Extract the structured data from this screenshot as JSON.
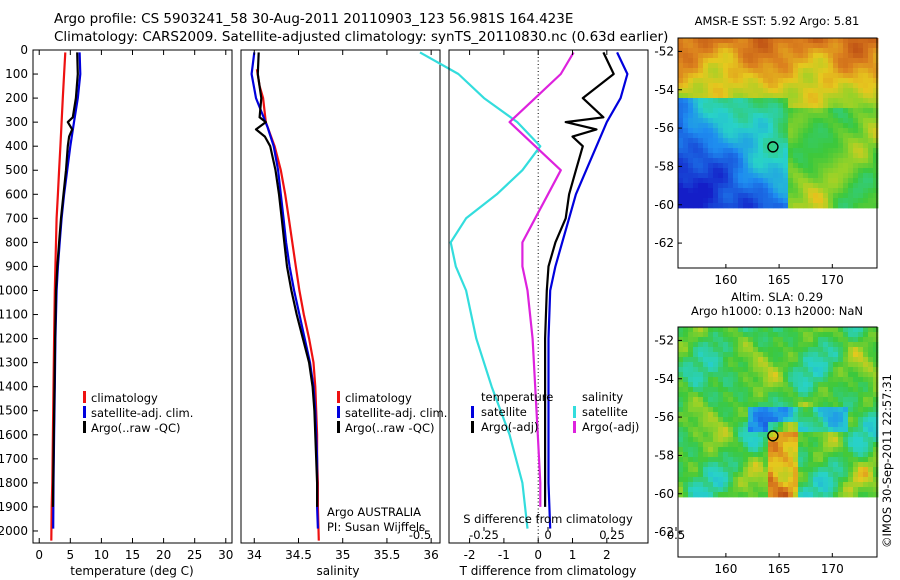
{
  "header": {
    "line1": "Argo profile: CS 5903241_58 30-Aug-2011 20110903_123 56.981S 164.423E",
    "line2": "Climatology: CARS2009. Satellite-adjusted climatology: synTS_20110830.nc (0.63d earlier)"
  },
  "colors": {
    "climatology": "#ee1111",
    "satellite": "#0000dd",
    "argo": "#000000",
    "s_satellite": "#33dddd",
    "s_argo": "#dd22dd"
  },
  "chart_data": [
    {
      "type": "line",
      "panel": "temperature",
      "xlabel": "temperature (deg C)",
      "ylim": [
        2050,
        0
      ],
      "xlim": [
        -1,
        31
      ],
      "xticks": [
        "0",
        "5",
        "10",
        "15",
        "20",
        "25",
        "30"
      ],
      "yticks": [
        "0",
        "100",
        "200",
        "300",
        "400",
        "500",
        "600",
        "700",
        "800",
        "900",
        "1000",
        "1100",
        "1200",
        "1300",
        "1400",
        "1500",
        "1600",
        "1700",
        "1800",
        "1900",
        "2000"
      ],
      "legend": [
        "climatology",
        "satellite-adj. clim.",
        "Argo(..raw -QC)"
      ],
      "series": [
        {
          "name": "climatology",
          "color": "climatology",
          "points": [
            [
              4.2,
              10
            ],
            [
              4.0,
              100
            ],
            [
              3.8,
              200
            ],
            [
              3.6,
              300
            ],
            [
              3.4,
              400
            ],
            [
              3.2,
              500
            ],
            [
              3.0,
              600
            ],
            [
              2.8,
              700
            ],
            [
              2.7,
              800
            ],
            [
              2.6,
              900
            ],
            [
              2.5,
              1000
            ],
            [
              2.4,
              1200
            ],
            [
              2.3,
              1400
            ],
            [
              2.2,
              1600
            ],
            [
              2.1,
              1800
            ],
            [
              2.0,
              1900
            ],
            [
              1.95,
              2040
            ]
          ]
        },
        {
          "name": "satellite-adj. clim.",
          "color": "satellite",
          "points": [
            [
              6.5,
              10
            ],
            [
              6.6,
              100
            ],
            [
              6.2,
              200
            ],
            [
              5.6,
              300
            ],
            [
              5.0,
              400
            ],
            [
              4.5,
              500
            ],
            [
              4.0,
              600
            ],
            [
              3.6,
              700
            ],
            [
              3.3,
              800
            ],
            [
              3.0,
              900
            ],
            [
              2.8,
              1000
            ],
            [
              2.6,
              1200
            ],
            [
              2.5,
              1400
            ],
            [
              2.4,
              1600
            ],
            [
              2.3,
              1800
            ],
            [
              2.25,
              1990
            ]
          ]
        },
        {
          "name": "Argo(..raw -QC)",
          "color": "argo",
          "points": [
            [
              6.1,
              10
            ],
            [
              6.2,
              100
            ],
            [
              5.9,
              200
            ],
            [
              5.4,
              280
            ],
            [
              4.6,
              300
            ],
            [
              5.3,
              330
            ],
            [
              4.8,
              360
            ],
            [
              4.6,
              400
            ],
            [
              4.3,
              500
            ],
            [
              3.9,
              600
            ],
            [
              3.5,
              700
            ],
            [
              3.2,
              800
            ],
            [
              2.9,
              900
            ],
            [
              2.7,
              1000
            ],
            [
              2.55,
              1200
            ],
            [
              2.45,
              1400
            ],
            [
              2.35,
              1600
            ],
            [
              2.25,
              1800
            ],
            [
              2.2,
              1900
            ]
          ]
        }
      ]
    },
    {
      "type": "line",
      "panel": "salinity",
      "xlabel": "salinity",
      "ylim": [
        2050,
        0
      ],
      "xlim": [
        33.85,
        36.1
      ],
      "xticks": [
        "34",
        "34.5",
        "35",
        "35.5",
        "36"
      ],
      "legend": [
        "climatology",
        "satellite-adj. clim.",
        "Argo(..raw -QC)"
      ],
      "series": [
        {
          "name": "climatology",
          "color": "climatology",
          "points": [
            [
              34.03,
              80
            ],
            [
              34.06,
              150
            ],
            [
              34.1,
              200
            ],
            [
              34.13,
              300
            ],
            [
              34.23,
              400
            ],
            [
              34.3,
              500
            ],
            [
              34.35,
              600
            ],
            [
              34.39,
              700
            ],
            [
              34.43,
              800
            ],
            [
              34.47,
              900
            ],
            [
              34.51,
              1000
            ],
            [
              34.56,
              1100
            ],
            [
              34.62,
              1200
            ],
            [
              34.67,
              1300
            ],
            [
              34.69,
              1400
            ],
            [
              34.7,
              1500
            ],
            [
              34.71,
              1600
            ],
            [
              34.71,
              1700
            ],
            [
              34.72,
              1800
            ],
            [
              34.72,
              1900
            ],
            [
              34.73,
              2040
            ]
          ]
        },
        {
          "name": "satellite-adj. clim.",
          "color": "satellite",
          "points": [
            [
              34.0,
              10
            ],
            [
              33.97,
              100
            ],
            [
              34.02,
              200
            ],
            [
              34.15,
              320
            ],
            [
              34.22,
              400
            ],
            [
              34.27,
              500
            ],
            [
              34.3,
              600
            ],
            [
              34.33,
              700
            ],
            [
              34.36,
              800
            ],
            [
              34.4,
              900
            ],
            [
              34.45,
              1000
            ],
            [
              34.51,
              1100
            ],
            [
              34.57,
              1200
            ],
            [
              34.63,
              1300
            ],
            [
              34.67,
              1400
            ],
            [
              34.69,
              1500
            ],
            [
              34.7,
              1600
            ],
            [
              34.71,
              1700
            ],
            [
              34.71,
              1800
            ],
            [
              34.71,
              1900
            ],
            [
              34.72,
              1990
            ]
          ]
        },
        {
          "name": "Argo(..raw -QC)",
          "color": "argo",
          "points": [
            [
              34.05,
              10
            ],
            [
              34.04,
              100
            ],
            [
              34.08,
              200
            ],
            [
              34.06,
              280
            ],
            [
              34.13,
              300
            ],
            [
              34.02,
              330
            ],
            [
              34.12,
              360
            ],
            [
              34.18,
              400
            ],
            [
              34.24,
              500
            ],
            [
              34.28,
              600
            ],
            [
              34.31,
              700
            ],
            [
              34.34,
              800
            ],
            [
              34.37,
              900
            ],
            [
              34.42,
              1000
            ],
            [
              34.48,
              1100
            ],
            [
              34.55,
              1200
            ],
            [
              34.62,
              1300
            ],
            [
              34.66,
              1400
            ],
            [
              34.68,
              1500
            ],
            [
              34.69,
              1600
            ],
            [
              34.7,
              1700
            ],
            [
              34.71,
              1800
            ],
            [
              34.71,
              1900
            ]
          ]
        }
      ],
      "annotation": [
        "Argo AUSTRALIA",
        "PI: Susan Wijffels"
      ]
    },
    {
      "type": "line",
      "panel": "differences",
      "xlabel": "T difference from climatology",
      "top_xlabel": "S difference from climatology",
      "ylim": [
        2050,
        0
      ],
      "xlim": [
        -2.6,
        3.2
      ],
      "xticks": [
        "-2",
        "-1",
        "0",
        "1",
        "2"
      ],
      "s_xticks": [
        "-0.5",
        "-0.25",
        "0",
        "0.25",
        "0.5"
      ],
      "zero_line": 0,
      "legend_titles": [
        "temperature",
        "salinity"
      ],
      "legend": [
        "satellite",
        "Argo(-adj)",
        "satellite",
        "Argo(-adj)"
      ],
      "series": [
        {
          "name": "satellite",
          "group": "temperature",
          "color": "satellite",
          "points": [
            [
              2.3,
              10
            ],
            [
              2.6,
              100
            ],
            [
              2.4,
              200
            ],
            [
              2.0,
              300
            ],
            [
              1.7,
              400
            ],
            [
              1.4,
              500
            ],
            [
              1.1,
              600
            ],
            [
              0.9,
              700
            ],
            [
              0.7,
              800
            ],
            [
              0.5,
              900
            ],
            [
              0.35,
              1000
            ],
            [
              0.3,
              1200
            ],
            [
              0.3,
              1400
            ],
            [
              0.3,
              1600
            ],
            [
              0.3,
              1800
            ],
            [
              0.35,
              1990
            ]
          ]
        },
        {
          "name": "Argo(-adj)",
          "group": "temperature",
          "color": "argo",
          "points": [
            [
              1.9,
              10
            ],
            [
              2.2,
              100
            ],
            [
              1.3,
              200
            ],
            [
              1.9,
              280
            ],
            [
              0.8,
              300
            ],
            [
              1.7,
              330
            ],
            [
              1.0,
              360
            ],
            [
              1.3,
              400
            ],
            [
              1.1,
              500
            ],
            [
              0.9,
              600
            ],
            [
              0.8,
              700
            ],
            [
              0.5,
              800
            ],
            [
              0.3,
              900
            ],
            [
              0.25,
              1000
            ],
            [
              0.2,
              1200
            ],
            [
              0.2,
              1400
            ],
            [
              0.2,
              1600
            ],
            [
              0.2,
              1800
            ],
            [
              0.2,
              1900
            ]
          ]
        },
        {
          "name": "satellite",
          "group": "salinity",
          "color": "s_satellite",
          "points": [
            [
              -0.5,
              10
            ],
            [
              -0.35,
              100
            ],
            [
              -0.25,
              200
            ],
            [
              -0.12,
              300
            ],
            [
              -0.03,
              400
            ],
            [
              -0.1,
              500
            ],
            [
              -0.2,
              600
            ],
            [
              -0.32,
              700
            ],
            [
              -0.38,
              800
            ],
            [
              -0.36,
              900
            ],
            [
              -0.32,
              1000
            ],
            [
              -0.28,
              1200
            ],
            [
              -0.22,
              1400
            ],
            [
              -0.15,
              1600
            ],
            [
              -0.1,
              1800
            ],
            [
              -0.08,
              1990
            ]
          ]
        },
        {
          "name": "Argo(-adj)",
          "group": "salinity",
          "color": "s_argo",
          "points": [
            [
              0.1,
              10
            ],
            [
              0.05,
              100
            ],
            [
              -0.05,
              200
            ],
            [
              -0.15,
              300
            ],
            [
              -0.05,
              400
            ],
            [
              0.05,
              500
            ],
            [
              0.0,
              600
            ],
            [
              -0.05,
              700
            ],
            [
              -0.1,
              800
            ],
            [
              -0.1,
              900
            ],
            [
              -0.08,
              1000
            ],
            [
              -0.06,
              1200
            ],
            [
              -0.05,
              1400
            ],
            [
              -0.04,
              1600
            ],
            [
              -0.03,
              1800
            ],
            [
              -0.03,
              1900
            ]
          ]
        }
      ]
    }
  ],
  "maps": [
    {
      "title": "AMSR-E SST: 5.92 Argo: 5.81",
      "subtitle": "",
      "kind": "sst",
      "xlim": [
        155.5,
        174.2
      ],
      "ylim": [
        -63.3,
        -51.3
      ],
      "xticks": [
        "160",
        "165",
        "170"
      ],
      "yticks": [
        "-52",
        "-54",
        "-56",
        "-58",
        "-60",
        "-62"
      ],
      "float_position": [
        164.42,
        -56.98
      ]
    },
    {
      "title": "Altim. SLA: 0.29",
      "subtitle": "Argo h1000: 0.13 h2000: NaN",
      "kind": "sla",
      "xlim": [
        155.5,
        174.2
      ],
      "ylim": [
        -63.3,
        -51.3
      ],
      "xticks": [
        "160",
        "165",
        "170"
      ],
      "yticks": [
        "-52",
        "-54",
        "-56",
        "-58",
        "-60",
        "-62"
      ],
      "float_position": [
        164.42,
        -56.98
      ]
    }
  ],
  "watermark": "©IMOS 30-Sep-2011 22:57:31"
}
